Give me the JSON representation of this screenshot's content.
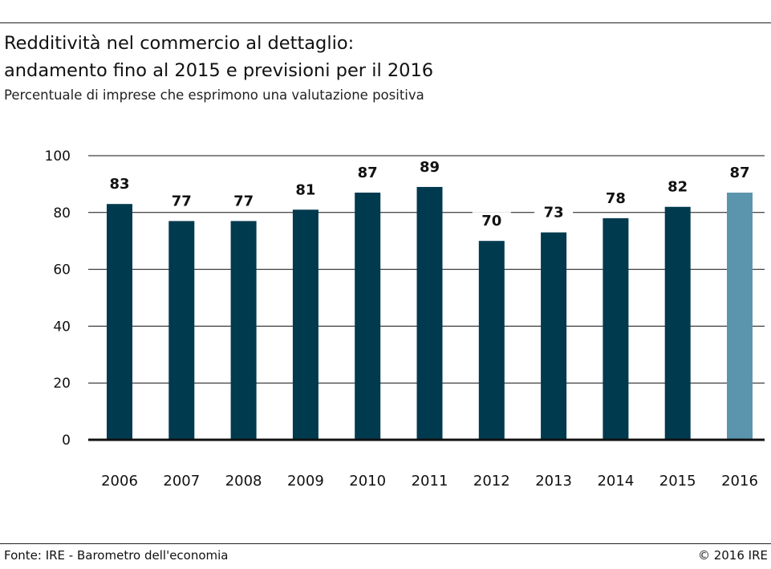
{
  "header": {
    "title_line1": "Redditività nel commercio al dettaglio:",
    "title_line2": "andamento fino al 2015 e previsioni per il 2016",
    "subtitle": "Percentuale di imprese che esprimono una valutazione positiva"
  },
  "footer": {
    "source": "Fonte: IRE - Barometro dell'economia",
    "copyright": "© 2016 IRE"
  },
  "colors": {
    "actual_bar": "#003a4f",
    "forecast_bar": "#5b95ad",
    "grid": "#111111",
    "text": "#111111"
  },
  "chart_data": {
    "type": "bar",
    "title": "Redditività nel commercio al dettaglio: andamento fino al 2015 e previsioni per il 2016",
    "subtitle": "Percentuale di imprese che esprimono una valutazione positiva",
    "categories": [
      "2006",
      "2007",
      "2008",
      "2009",
      "2010",
      "2011",
      "2012",
      "2013",
      "2014",
      "2015",
      "2016"
    ],
    "values": [
      83,
      77,
      77,
      81,
      87,
      89,
      70,
      73,
      78,
      82,
      87
    ],
    "forecast_categories": [
      "2016"
    ],
    "ylim": [
      0,
      100
    ],
    "yticks": [
      0,
      20,
      40,
      60,
      80,
      100
    ],
    "xlabel": "",
    "ylabel": "",
    "grid": true,
    "data_labels": true,
    "legend": false
  }
}
